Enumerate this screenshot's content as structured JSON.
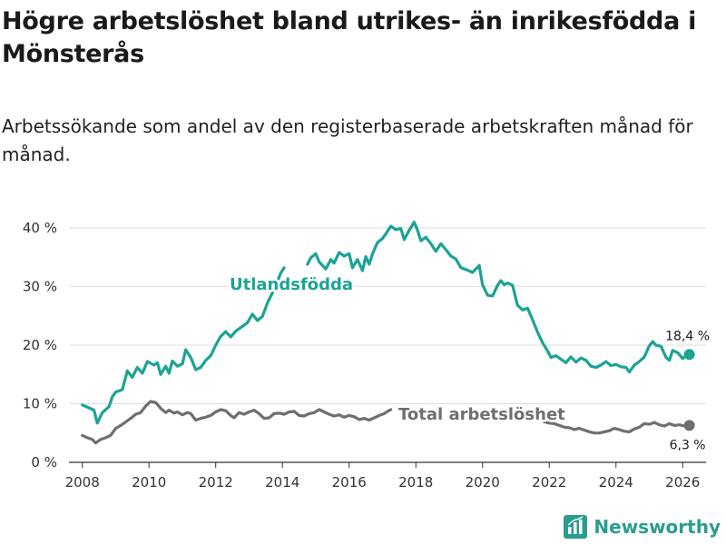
{
  "title": "Högre arbetslöshet bland utrikes- än inrikesfödda i Mönsterås",
  "subtitle": "Arbetssökande som andel av den registerbaserade arbetskraften månad för månad.",
  "brand": {
    "name": "Newsworthy",
    "logo_icon": "bar-chart-logo-icon"
  },
  "colors": {
    "foreign": "#1ba394",
    "total": "#6e6e73",
    "grid": "#dedede",
    "axis": "#333333"
  },
  "chart_data": {
    "type": "line",
    "xlim": [
      2007.6,
      2026.7
    ],
    "ylim": [
      0,
      42
    ],
    "y_ticks": [
      0,
      10,
      20,
      30,
      40
    ],
    "y_tick_labels": [
      "0 %",
      "10 %",
      "20 %",
      "30 %",
      "40 %"
    ],
    "x_ticks": [
      2008,
      2010,
      2012,
      2014,
      2016,
      2018,
      2020,
      2022,
      2024,
      2026
    ],
    "x_tick_labels": [
      "2008",
      "2010",
      "2012",
      "2014",
      "2016",
      "2018",
      "2020",
      "2022",
      "2024",
      "2026"
    ],
    "series": [
      {
        "name": "Utlandsfödda",
        "end_label": "18,4 %",
        "points": [
          [
            2008.0,
            9.8
          ],
          [
            2008.2,
            9.3
          ],
          [
            2008.35,
            8.9
          ],
          [
            2008.45,
            6.7
          ],
          [
            2008.6,
            8.5
          ],
          [
            2008.8,
            9.5
          ],
          [
            2008.9,
            11.2
          ],
          [
            2009.0,
            12.0
          ],
          [
            2009.2,
            12.4
          ],
          [
            2009.35,
            15.6
          ],
          [
            2009.5,
            14.5
          ],
          [
            2009.65,
            16.2
          ],
          [
            2009.8,
            15.2
          ],
          [
            2009.95,
            17.2
          ],
          [
            2010.15,
            16.6
          ],
          [
            2010.25,
            17.0
          ],
          [
            2010.35,
            15.0
          ],
          [
            2010.5,
            16.4
          ],
          [
            2010.6,
            15.2
          ],
          [
            2010.7,
            17.3
          ],
          [
            2010.85,
            16.4
          ],
          [
            2011.0,
            16.8
          ],
          [
            2011.1,
            19.2
          ],
          [
            2011.25,
            17.9
          ],
          [
            2011.4,
            15.8
          ],
          [
            2011.55,
            16.2
          ],
          [
            2011.7,
            17.4
          ],
          [
            2011.85,
            18.2
          ],
          [
            2012.0,
            20.0
          ],
          [
            2012.15,
            21.5
          ],
          [
            2012.3,
            22.3
          ],
          [
            2012.45,
            21.4
          ],
          [
            2012.6,
            22.4
          ],
          [
            2012.8,
            23.2
          ],
          [
            2012.95,
            23.8
          ],
          [
            2013.1,
            25.3
          ],
          [
            2013.25,
            24.2
          ],
          [
            2013.4,
            24.9
          ],
          [
            2013.55,
            27.2
          ],
          [
            2013.75,
            29.5
          ],
          [
            2013.95,
            32.3
          ],
          [
            2014.05,
            33.2
          ],
          [
            2014.75,
            33.8
          ],
          [
            2014.85,
            34.9
          ],
          [
            2015.0,
            35.6
          ],
          [
            2015.1,
            34.2
          ],
          [
            2015.3,
            33.0
          ],
          [
            2015.45,
            34.6
          ],
          [
            2015.55,
            34.0
          ],
          [
            2015.7,
            35.8
          ],
          [
            2015.85,
            35.2
          ],
          [
            2016.0,
            35.6
          ],
          [
            2016.1,
            33.2
          ],
          [
            2016.25,
            34.6
          ],
          [
            2016.4,
            32.7
          ],
          [
            2016.5,
            35.1
          ],
          [
            2016.6,
            33.8
          ],
          [
            2016.7,
            35.6
          ],
          [
            2016.85,
            37.5
          ],
          [
            2017.0,
            38.2
          ],
          [
            2017.1,
            39.0
          ],
          [
            2017.25,
            40.3
          ],
          [
            2017.4,
            39.7
          ],
          [
            2017.55,
            39.9
          ],
          [
            2017.65,
            38.0
          ],
          [
            2017.8,
            39.6
          ],
          [
            2017.95,
            41.0
          ],
          [
            2018.05,
            39.6
          ],
          [
            2018.15,
            37.8
          ],
          [
            2018.3,
            38.4
          ],
          [
            2018.45,
            37.3
          ],
          [
            2018.6,
            36.0
          ],
          [
            2018.75,
            37.3
          ],
          [
            2018.9,
            36.3
          ],
          [
            2019.05,
            35.2
          ],
          [
            2019.2,
            34.7
          ],
          [
            2019.35,
            33.2
          ],
          [
            2019.5,
            32.9
          ],
          [
            2019.7,
            32.4
          ],
          [
            2019.9,
            33.6
          ],
          [
            2020.0,
            30.3
          ],
          [
            2020.15,
            28.5
          ],
          [
            2020.3,
            28.4
          ],
          [
            2020.45,
            30.2
          ],
          [
            2020.55,
            31.0
          ],
          [
            2020.65,
            30.3
          ],
          [
            2020.75,
            30.6
          ],
          [
            2020.9,
            30.2
          ],
          [
            2021.05,
            26.8
          ],
          [
            2021.2,
            26.0
          ],
          [
            2021.35,
            26.3
          ],
          [
            2021.5,
            24.3
          ],
          [
            2021.65,
            22.2
          ],
          [
            2021.8,
            20.4
          ],
          [
            2021.95,
            19.0
          ],
          [
            2022.05,
            17.9
          ],
          [
            2022.2,
            18.2
          ],
          [
            2022.35,
            17.6
          ],
          [
            2022.5,
            17.0
          ],
          [
            2022.65,
            18.0
          ],
          [
            2022.8,
            17.1
          ],
          [
            2022.95,
            17.8
          ],
          [
            2023.1,
            17.4
          ],
          [
            2023.25,
            16.4
          ],
          [
            2023.4,
            16.2
          ],
          [
            2023.55,
            16.6
          ],
          [
            2023.7,
            17.2
          ],
          [
            2023.85,
            16.5
          ],
          [
            2024.0,
            16.7
          ],
          [
            2024.15,
            16.3
          ],
          [
            2024.3,
            16.2
          ],
          [
            2024.4,
            15.4
          ],
          [
            2024.55,
            16.6
          ],
          [
            2024.7,
            17.2
          ],
          [
            2024.85,
            18.0
          ],
          [
            2025.0,
            19.9
          ],
          [
            2025.1,
            20.6
          ],
          [
            2025.2,
            20.0
          ],
          [
            2025.35,
            19.8
          ],
          [
            2025.5,
            17.9
          ],
          [
            2025.6,
            17.4
          ],
          [
            2025.7,
            19.1
          ],
          [
            2025.85,
            18.7
          ],
          [
            2026.0,
            17.7
          ],
          [
            2026.1,
            18.2
          ],
          [
            2026.2,
            18.4
          ]
        ]
      },
      {
        "name": "Total arbetslöshet",
        "end_label": "6,3 %",
        "points": [
          [
            2008.0,
            4.6
          ],
          [
            2008.15,
            4.2
          ],
          [
            2008.3,
            3.9
          ],
          [
            2008.4,
            3.3
          ],
          [
            2008.55,
            3.9
          ],
          [
            2008.7,
            4.2
          ],
          [
            2008.85,
            4.6
          ],
          [
            2009.0,
            5.8
          ],
          [
            2009.15,
            6.3
          ],
          [
            2009.3,
            6.9
          ],
          [
            2009.45,
            7.5
          ],
          [
            2009.6,
            8.2
          ],
          [
            2009.75,
            8.5
          ],
          [
            2009.9,
            9.6
          ],
          [
            2010.05,
            10.4
          ],
          [
            2010.2,
            10.2
          ],
          [
            2010.35,
            9.2
          ],
          [
            2010.5,
            8.5
          ],
          [
            2010.6,
            8.9
          ],
          [
            2010.75,
            8.4
          ],
          [
            2010.85,
            8.6
          ],
          [
            2011.0,
            8.1
          ],
          [
            2011.15,
            8.5
          ],
          [
            2011.25,
            8.3
          ],
          [
            2011.4,
            7.2
          ],
          [
            2011.55,
            7.5
          ],
          [
            2011.7,
            7.7
          ],
          [
            2011.85,
            8.0
          ],
          [
            2012.0,
            8.6
          ],
          [
            2012.15,
            9.0
          ],
          [
            2012.3,
            8.8
          ],
          [
            2012.45,
            8.0
          ],
          [
            2012.55,
            7.6
          ],
          [
            2012.7,
            8.5
          ],
          [
            2012.85,
            8.2
          ],
          [
            2013.0,
            8.6
          ],
          [
            2013.15,
            8.9
          ],
          [
            2013.3,
            8.3
          ],
          [
            2013.45,
            7.5
          ],
          [
            2013.6,
            7.6
          ],
          [
            2013.75,
            8.3
          ],
          [
            2013.9,
            8.4
          ],
          [
            2014.05,
            8.2
          ],
          [
            2014.2,
            8.6
          ],
          [
            2014.35,
            8.7
          ],
          [
            2014.5,
            8.0
          ],
          [
            2014.65,
            7.9
          ],
          [
            2014.8,
            8.3
          ],
          [
            2014.95,
            8.5
          ],
          [
            2015.1,
            9.0
          ],
          [
            2015.25,
            8.6
          ],
          [
            2015.4,
            8.2
          ],
          [
            2015.55,
            7.9
          ],
          [
            2015.7,
            8.1
          ],
          [
            2015.85,
            7.7
          ],
          [
            2016.0,
            8.0
          ],
          [
            2016.15,
            7.8
          ],
          [
            2016.3,
            7.3
          ],
          [
            2016.45,
            7.5
          ],
          [
            2016.6,
            7.2
          ],
          [
            2016.75,
            7.6
          ],
          [
            2016.9,
            8.0
          ],
          [
            2017.05,
            8.3
          ],
          [
            2017.15,
            8.7
          ],
          [
            2017.25,
            9.0
          ],
          [
            2021.85,
            6.9
          ],
          [
            2022.0,
            6.7
          ],
          [
            2022.15,
            6.6
          ],
          [
            2022.3,
            6.3
          ],
          [
            2022.45,
            6.0
          ],
          [
            2022.6,
            5.9
          ],
          [
            2022.75,
            5.6
          ],
          [
            2022.9,
            5.8
          ],
          [
            2023.05,
            5.5
          ],
          [
            2023.2,
            5.2
          ],
          [
            2023.35,
            5.0
          ],
          [
            2023.5,
            5.0
          ],
          [
            2023.65,
            5.2
          ],
          [
            2023.8,
            5.4
          ],
          [
            2023.95,
            5.8
          ],
          [
            2024.1,
            5.6
          ],
          [
            2024.25,
            5.3
          ],
          [
            2024.4,
            5.2
          ],
          [
            2024.55,
            5.7
          ],
          [
            2024.7,
            6.0
          ],
          [
            2024.85,
            6.6
          ],
          [
            2025.0,
            6.5
          ],
          [
            2025.15,
            6.8
          ],
          [
            2025.3,
            6.4
          ],
          [
            2025.45,
            6.2
          ],
          [
            2025.6,
            6.6
          ],
          [
            2025.75,
            6.3
          ],
          [
            2025.9,
            6.4
          ],
          [
            2026.05,
            6.2
          ],
          [
            2026.2,
            6.3
          ]
        ]
      }
    ]
  }
}
